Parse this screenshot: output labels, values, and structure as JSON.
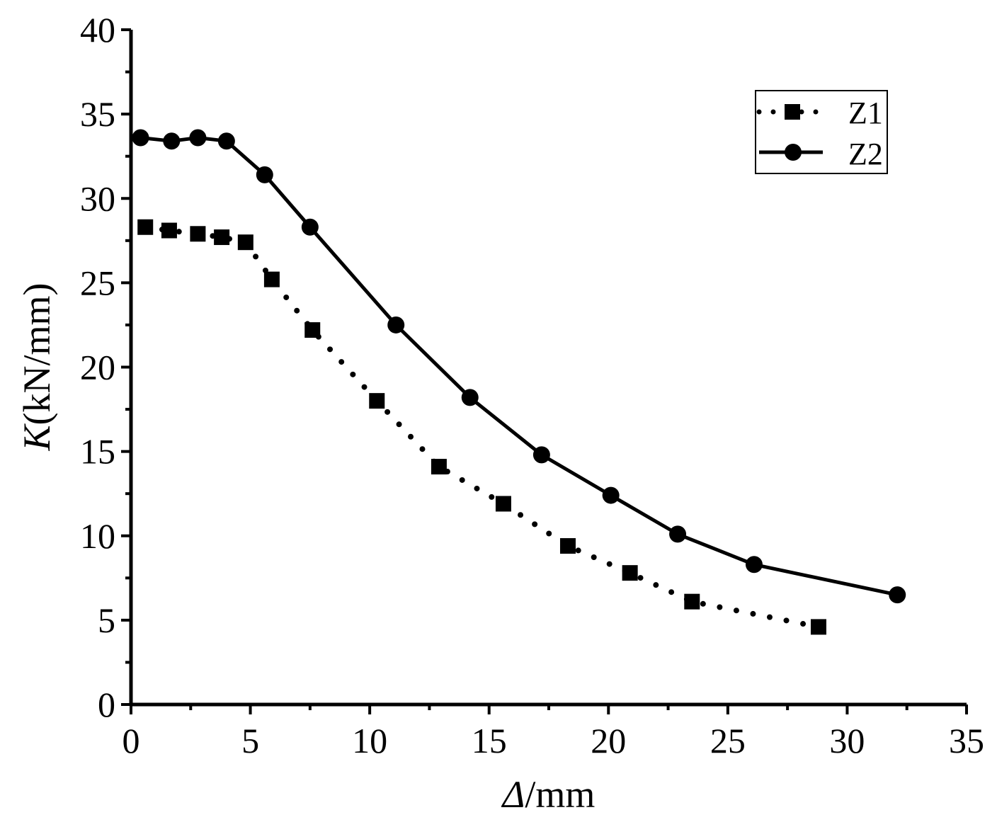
{
  "chart_data": {
    "type": "line",
    "title": "",
    "xlabel": {
      "italic": "Δ",
      "rest": "/mm"
    },
    "ylabel": {
      "italic": "K",
      "rest": "(kN/mm)"
    },
    "xlim": [
      0,
      35
    ],
    "ylim": [
      0,
      40
    ],
    "xticks": [
      0,
      5,
      10,
      15,
      20,
      25,
      30,
      35
    ],
    "yticks": [
      0,
      5,
      10,
      15,
      20,
      25,
      30,
      35,
      40
    ],
    "grid": false,
    "legend_position": "top-right",
    "series": [
      {
        "name": "Z1",
        "style": "dotted",
        "marker": "square",
        "color": "#000000",
        "x": [
          0.6,
          1.6,
          2.8,
          3.8,
          4.8,
          5.9,
          7.6,
          10.3,
          12.9,
          15.6,
          18.3,
          20.9,
          23.5,
          28.8
        ],
        "y": [
          28.3,
          28.1,
          27.9,
          27.7,
          27.4,
          25.2,
          22.2,
          18.0,
          14.1,
          11.9,
          9.4,
          7.8,
          6.1,
          4.6
        ]
      },
      {
        "name": "Z2",
        "style": "solid",
        "marker": "circle",
        "color": "#000000",
        "x": [
          0.4,
          1.7,
          2.8,
          4.0,
          5.6,
          7.5,
          11.1,
          14.2,
          17.2,
          20.1,
          22.9,
          26.1,
          32.1
        ],
        "y": [
          33.6,
          33.4,
          33.6,
          33.4,
          31.4,
          28.3,
          22.5,
          18.2,
          14.8,
          12.4,
          10.1,
          8.3,
          6.5
        ]
      }
    ]
  }
}
